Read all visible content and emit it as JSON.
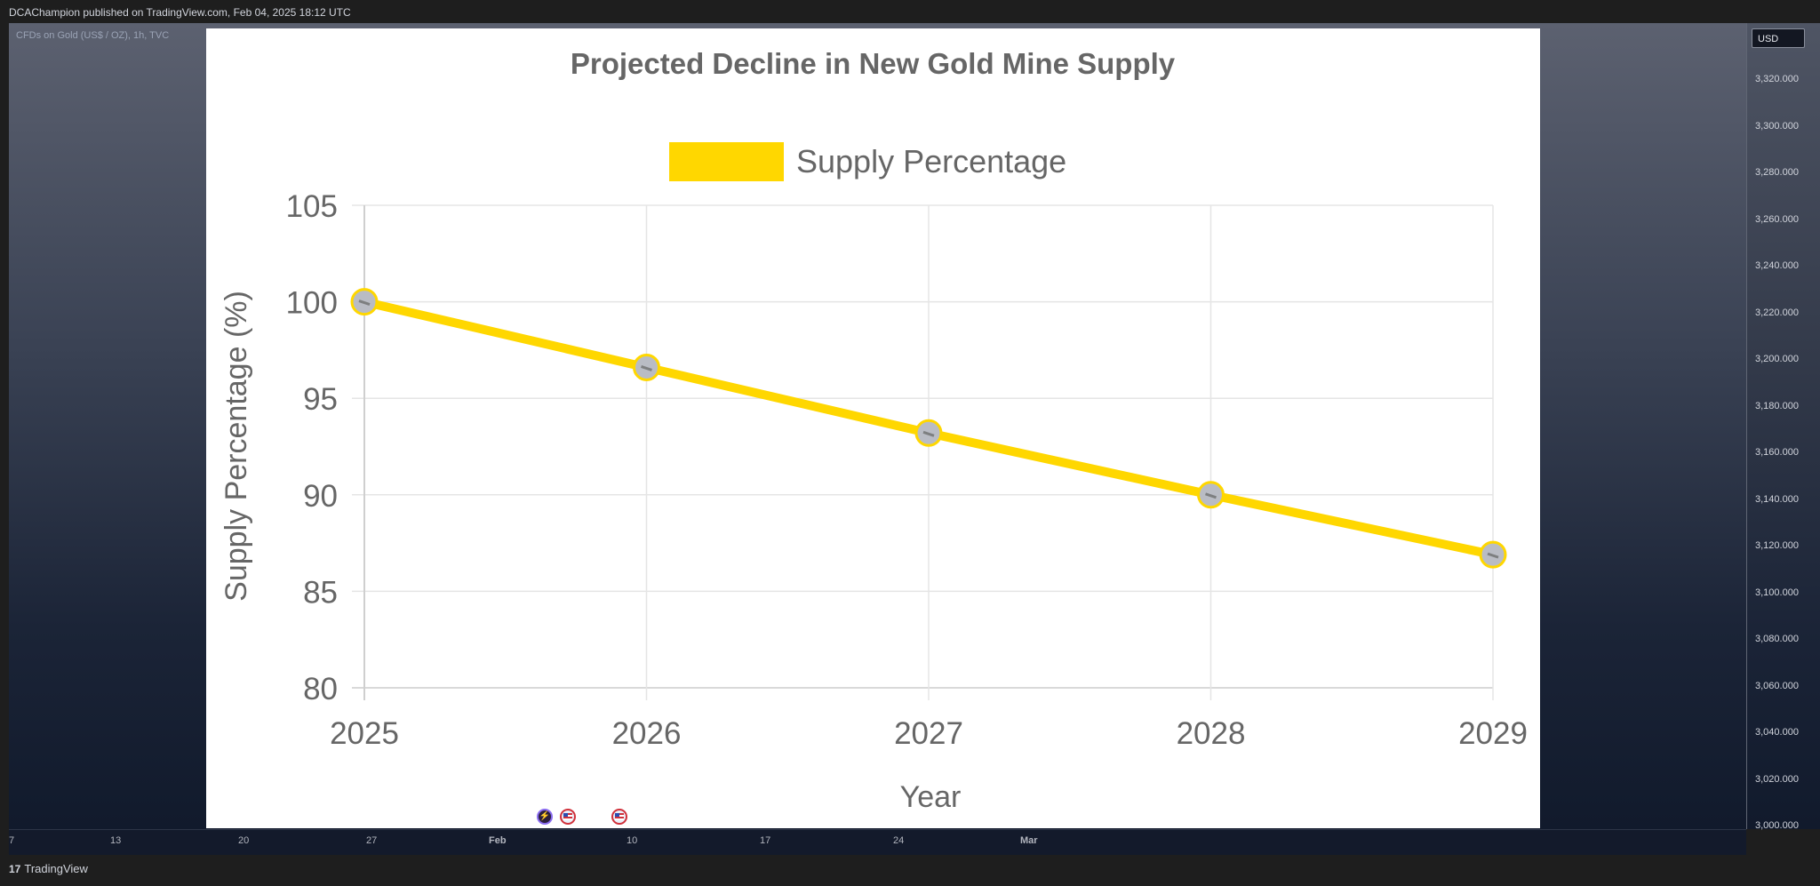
{
  "header": {
    "published": "DCAChampion published on TradingView.com, Feb 04, 2025 18:12 UTC"
  },
  "symbol": {
    "label": "CFDs on Gold (US$ / OZ), 1h, TVC"
  },
  "price_axis": {
    "currency": "USD",
    "ticks": [
      "3,320.000",
      "3,300.000",
      "3,280.000",
      "3,260.000",
      "3,240.000",
      "3,220.000",
      "3,200.000",
      "3,180.000",
      "3,160.000",
      "3,140.000",
      "3,120.000",
      "3,100.000",
      "3,080.000",
      "3,060.000",
      "3,040.000",
      "3,020.000",
      "3,000.000"
    ]
  },
  "time_axis": {
    "ticks": [
      "7",
      "13",
      "20",
      "27",
      "Feb",
      "10",
      "17",
      "24",
      "Mar"
    ]
  },
  "footer": {
    "brand_mark": "17",
    "brand": "TradingView"
  },
  "events": [
    {
      "icon": "bolt-icon"
    },
    {
      "icon": "us-flag-icon"
    },
    {
      "icon": "us-flag-icon"
    }
  ],
  "colors": {
    "line": "#FFD700",
    "marker_fill": "#b9bcc4",
    "text": "#666666",
    "grid": "#e5e5e5"
  },
  "chart_data": {
    "type": "line",
    "title": "Projected Decline in New Gold Mine Supply",
    "legend": "Supply Percentage",
    "legend_position": "top",
    "xlabel": "Year",
    "ylabel": "Supply Percentage (%)",
    "categories": [
      "2025",
      "2026",
      "2027",
      "2028",
      "2029"
    ],
    "series": [
      {
        "name": "Supply Percentage",
        "values": [
          100,
          96.6,
          93.2,
          90.0,
          86.9
        ]
      }
    ],
    "ylim": [
      80,
      105
    ],
    "yticks": [
      80,
      85,
      90,
      95,
      100,
      105
    ],
    "grid": true
  }
}
